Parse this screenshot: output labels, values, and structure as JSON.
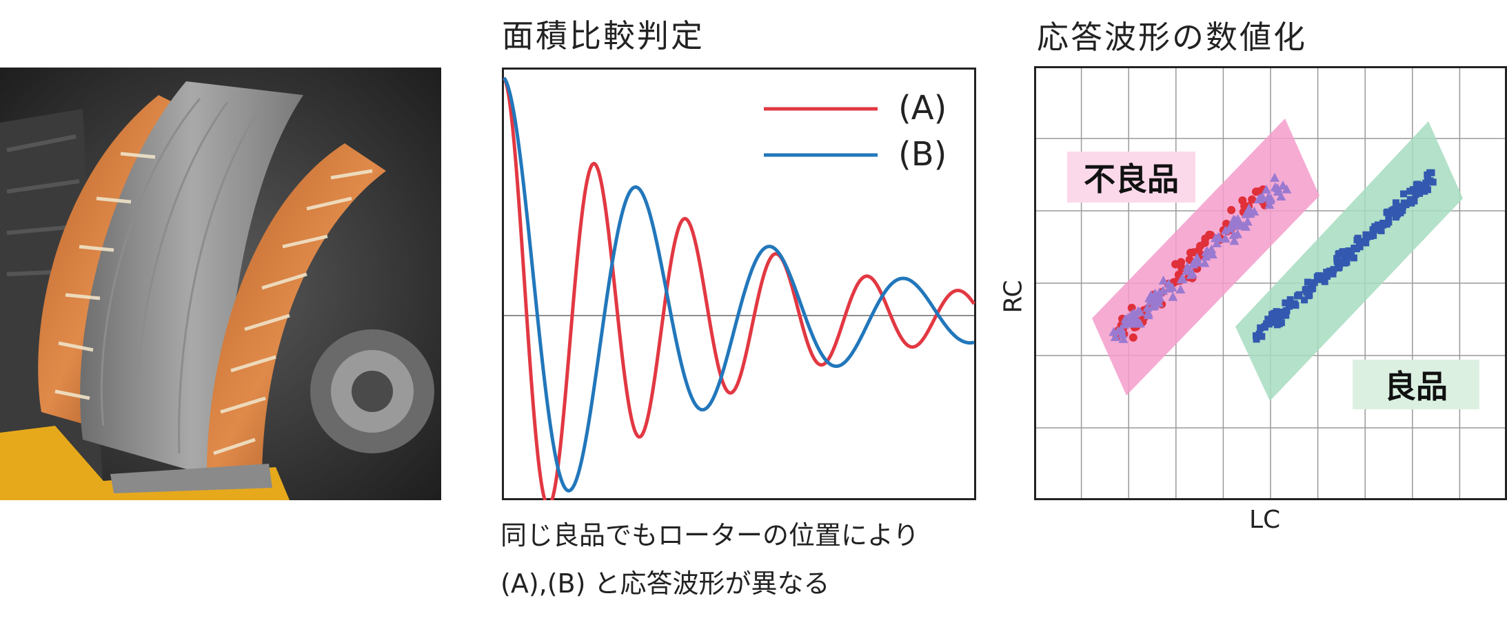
{
  "titles": {
    "area_comparison": "面積比較判定",
    "waveform_digitization": "応答波形の数値化"
  },
  "caption": {
    "line1": "同じ良品でもローターの位置により",
    "line2": "(A),(B) と応答波形が異なる"
  },
  "legend": {
    "a": "(A)",
    "b": "(B)"
  },
  "scatter": {
    "xlabel": "LC",
    "ylabel": "RC",
    "defective_label": "不良品",
    "good_label": "良品"
  },
  "colors": {
    "wave_a": "#e23842",
    "wave_b": "#2277bb",
    "defective_band": "#f49ccb",
    "good_band": "#a6dcbf",
    "defective_tag": "#fcd9ea",
    "good_tag": "#dcf0e2",
    "red_points": "#e0303a",
    "purple_points": "#9a7ad0",
    "blue_points": "#3358b0"
  }
}
